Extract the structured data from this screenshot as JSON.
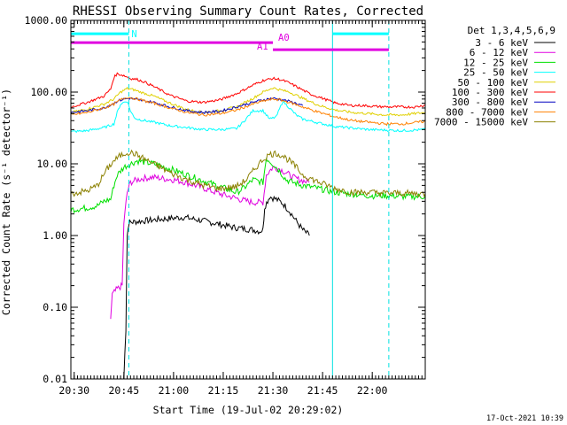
{
  "chart_data": {
    "type": "line",
    "title": "RHESSI Observing Summary Count Rates, Corrected",
    "xlabel": "Start Time (19-Jul-02 20:29:02)",
    "ylabel": "Corrected Count Rate (s⁻¹ detector⁻¹)",
    "yscale": "log",
    "ylim": [
      0.01,
      1000
    ],
    "xlim_minutes": [
      0,
      107
    ],
    "x_ticks": [
      {
        "label": "20:30",
        "min": 1
      },
      {
        "label": "20:45",
        "min": 16
      },
      {
        "label": "21:00",
        "min": 31
      },
      {
        "label": "21:15",
        "min": 46
      },
      {
        "label": "21:30",
        "min": 61
      },
      {
        "label": "21:45",
        "min": 76
      },
      {
        "label": "22:00",
        "min": 91
      }
    ],
    "y_ticks": [
      {
        "label": "1000.00",
        "v": 1000
      },
      {
        "label": "100.00",
        "v": 100
      },
      {
        "label": "10.00",
        "v": 10
      },
      {
        "label": "1.00",
        "v": 1
      },
      {
        "label": "0.10",
        "v": 0.1
      },
      {
        "label": "0.01",
        "v": 0.01
      }
    ],
    "legend_title": "Det 1,3,4,5,6,9",
    "series": [
      {
        "name": "3 - 6 keV",
        "color": "#000000",
        "x": [
          16,
          16.6,
          17,
          17.5,
          19,
          22,
          25,
          28,
          31,
          34,
          37,
          40,
          43,
          46,
          49,
          52,
          55,
          57,
          58,
          58.5,
          60,
          62,
          64,
          66,
          68,
          70,
          72
        ],
        "y": [
          0.01,
          0.05,
          1.0,
          1.5,
          1.55,
          1.6,
          1.65,
          1.7,
          1.75,
          1.8,
          1.7,
          1.6,
          1.5,
          1.4,
          1.3,
          1.25,
          1.2,
          1.15,
          1.2,
          2.5,
          3.5,
          3.2,
          2.8,
          2.2,
          1.6,
          1.2,
          1.0
        ]
      },
      {
        "name": "6 - 12 keV",
        "color": "#e000e0",
        "x": [
          12,
          12.5,
          14,
          15.5,
          16,
          17,
          18,
          20,
          22,
          25,
          28,
          31,
          34,
          37,
          40,
          43,
          46,
          49,
          52,
          55,
          58,
          59,
          61,
          63,
          65,
          67,
          69,
          72
        ],
        "y": [
          0.07,
          0.15,
          0.18,
          0.2,
          1.5,
          4.0,
          5.5,
          6.0,
          6.3,
          6.5,
          6.2,
          6.0,
          5.6,
          5.1,
          4.6,
          4.1,
          3.7,
          3.4,
          3.1,
          2.9,
          2.9,
          7.0,
          9.0,
          8.5,
          7.5,
          6.5,
          6.0,
          5.5
        ]
      },
      {
        "name": "12 - 25 keV",
        "color": "#00e000",
        "x": [
          0,
          4,
          8,
          10,
          12,
          13,
          14,
          16,
          18,
          20,
          25,
          30,
          35,
          40,
          45,
          50,
          52,
          55,
          58,
          59,
          61,
          63,
          65,
          67,
          70,
          75,
          80,
          85,
          90,
          95,
          100,
          107
        ],
        "y": [
          2.3,
          2.4,
          2.6,
          3.0,
          3.2,
          5.0,
          7.0,
          9.0,
          10.0,
          11.0,
          10.0,
          8.5,
          7.0,
          5.8,
          4.8,
          4.0,
          4.5,
          6.0,
          5.5,
          12.0,
          10.0,
          8.0,
          6.0,
          5.5,
          5.0,
          4.5,
          4.0,
          3.8,
          3.6,
          3.6,
          3.5,
          3.5
        ]
      },
      {
        "name": "25 - 50 keV",
        "color": "#00ffff",
        "x": [
          0,
          5,
          10,
          13,
          14,
          15,
          16,
          17,
          18,
          19,
          20,
          25,
          30,
          35,
          40,
          45,
          50,
          52,
          55,
          58,
          60,
          62,
          64,
          66,
          68,
          70,
          75,
          80,
          90,
          100,
          107
        ],
        "y": [
          28,
          29,
          32,
          36,
          52,
          68,
          72,
          75,
          55,
          45,
          42,
          38,
          34,
          32,
          30,
          30,
          31,
          38,
          55,
          55,
          42,
          45,
          75,
          60,
          48,
          42,
          37,
          33,
          30,
          29,
          30
        ]
      },
      {
        "name": "50 - 100 keV",
        "color": "#e0d000",
        "x": [
          0,
          5,
          10,
          13,
          15,
          17,
          19,
          21,
          25,
          30,
          35,
          40,
          45,
          50,
          55,
          58,
          61,
          63,
          66,
          70,
          75,
          80,
          85,
          90,
          95,
          100,
          107
        ],
        "y": [
          52,
          58,
          68,
          80,
          100,
          112,
          108,
          100,
          88,
          70,
          57,
          52,
          55,
          62,
          82,
          100,
          115,
          108,
          100,
          82,
          65,
          56,
          52,
          50,
          48,
          48,
          52
        ]
      },
      {
        "name": "100 - 300 keV",
        "color": "#ff0000",
        "x": [
          0,
          5,
          10,
          12,
          13,
          14,
          16,
          18,
          20,
          22,
          25,
          30,
          35,
          40,
          45,
          50,
          55,
          58,
          61,
          63,
          65,
          68,
          72,
          75,
          80,
          82,
          84,
          88,
          92,
          96,
          100,
          104,
          107
        ],
        "y": [
          62,
          72,
          88,
          110,
          160,
          180,
          170,
          155,
          150,
          140,
          120,
          90,
          75,
          72,
          78,
          95,
          125,
          145,
          155,
          150,
          140,
          120,
          95,
          85,
          70,
          68,
          65,
          65,
          63,
          62,
          62,
          62,
          66
        ]
      },
      {
        "name": "300 - 800 keV",
        "color": "#0000c0",
        "x": [
          0,
          5,
          10,
          13,
          14,
          16,
          18,
          20,
          25,
          30,
          35,
          40,
          45,
          50,
          55,
          58,
          61,
          64,
          67,
          70
        ],
        "y": [
          52,
          55,
          60,
          70,
          75,
          80,
          82,
          78,
          72,
          62,
          55,
          52,
          54,
          62,
          72,
          78,
          82,
          78,
          72,
          65
        ]
      },
      {
        "name": "800 - 7000 keV",
        "color": "#ff8000",
        "x": [
          0,
          5,
          10,
          13,
          15,
          17,
          19,
          21,
          25,
          30,
          35,
          40,
          45,
          50,
          55,
          58,
          61,
          63,
          66,
          70,
          75,
          80,
          85,
          90,
          95,
          100,
          107
        ],
        "y": [
          48,
          52,
          60,
          68,
          78,
          85,
          82,
          78,
          70,
          60,
          52,
          48,
          50,
          56,
          68,
          75,
          80,
          78,
          72,
          62,
          52,
          45,
          40,
          38,
          36,
          36,
          39
        ]
      },
      {
        "name": "7000 - 15000 keV",
        "color": "#8b8000",
        "x": [
          0,
          5,
          8,
          11,
          13,
          15,
          17,
          19,
          21,
          25,
          30,
          35,
          40,
          45,
          50,
          53,
          56,
          58,
          60,
          62,
          64,
          66,
          68,
          70,
          75,
          80,
          85,
          90,
          95,
          100,
          107
        ],
        "y": [
          3.8,
          4.2,
          5.0,
          8.5,
          11.0,
          13.0,
          14.5,
          14.0,
          12.5,
          10.0,
          7.5,
          6.0,
          5.0,
          4.5,
          4.8,
          6.0,
          9.0,
          11.5,
          13.5,
          14.0,
          13.0,
          11.0,
          9.0,
          7.0,
          5.5,
          4.5,
          4.0,
          4.0,
          3.9,
          3.9,
          3.8
        ]
      }
    ],
    "attenuator": [
      {
        "label": "A0",
        "y": 490,
        "x": [
          0,
          61
        ],
        "color": "#e000e0"
      },
      {
        "label": "A1",
        "y": 390,
        "x": [
          61,
          96
        ],
        "color": "#e000e0"
      }
    ],
    "night_bars": [
      {
        "label": "N",
        "y": 650,
        "x": [
          0,
          17.5
        ],
        "color": "#00ffff"
      },
      {
        "label": "",
        "y": 650,
        "x": [
          79,
          96
        ],
        "color": "#00ffff"
      }
    ],
    "saa_lines": [
      {
        "x": 0,
        "style": "solid"
      },
      {
        "x": 17.5,
        "style": "dashed"
      },
      {
        "x": 79,
        "style": "solid"
      },
      {
        "x": 96,
        "style": "dashed"
      }
    ],
    "grid": false,
    "legend_position": "right"
  },
  "footer_date": "17-Oct-2021 10:39"
}
